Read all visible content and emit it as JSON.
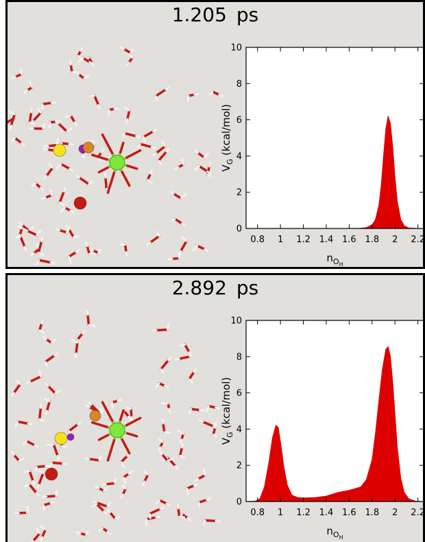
{
  "panels": [
    {
      "time_value": "1.205",
      "time_unit": "ps",
      "molecule_colors": {
        "oxygen": "#c41a14",
        "hydrogen": "#f2f2f2",
        "metal": "#7ee83a",
        "sulfur": "#f5e21c",
        "phosphorus": "#d8862a",
        "iodine": "#9b1fb8"
      }
    },
    {
      "time_value": "2.892",
      "time_unit": "ps",
      "molecule_colors": {
        "oxygen": "#c41a14",
        "hydrogen": "#f2f2f2",
        "metal": "#7ee83a",
        "sulfur": "#f5e21c",
        "phosphorus": "#d8862a",
        "iodine": "#9b1fb8"
      }
    }
  ],
  "chart_data": [
    {
      "type": "area",
      "ylabel_main": "V",
      "ylabel_sub": "G",
      "ylabel_rest": " (kcal/mol)",
      "xlabel_main": "n",
      "xlabel_sub": "O",
      "xlabel_subsub": "H",
      "xlim": [
        0.7,
        2.25
      ],
      "ylim": [
        0,
        10
      ],
      "x_ticks": [
        0.8,
        1,
        1.2,
        1.4,
        1.6,
        1.8,
        2,
        2.2
      ],
      "x_tick_labels": [
        "0.8",
        "1",
        "1.2",
        "1.4",
        "1.6",
        "1.8",
        "2",
        "2.2"
      ],
      "y_ticks": [
        0,
        2,
        4,
        6,
        8,
        10
      ],
      "y_tick_labels": [
        "0",
        "2",
        "4",
        "6",
        "8",
        "10"
      ],
      "fill_color": "#dd0000",
      "x": [
        0.7,
        1.6,
        1.7,
        1.75,
        1.8,
        1.83,
        1.86,
        1.88,
        1.9,
        1.92,
        1.94,
        1.96,
        1.98,
        2.0,
        2.02,
        2.05,
        2.08,
        2.12,
        2.2,
        2.25
      ],
      "y": [
        0,
        0,
        0.01,
        0.05,
        0.2,
        0.5,
        1.3,
        2.4,
        4.0,
        5.5,
        6.2,
        5.8,
        4.5,
        2.8,
        1.5,
        0.5,
        0.15,
        0.03,
        0,
        0
      ]
    },
    {
      "type": "area",
      "ylabel_main": "V",
      "ylabel_sub": "G",
      "ylabel_rest": " (kcal/mol)",
      "xlabel_main": "n",
      "xlabel_sub": "O",
      "xlabel_subsub": "H",
      "xlim": [
        0.7,
        2.25
      ],
      "ylim": [
        0,
        10
      ],
      "x_ticks": [
        0.8,
        1,
        1.2,
        1.4,
        1.6,
        1.8,
        2,
        2.2
      ],
      "x_tick_labels": [
        "0.8",
        "1",
        "1.2",
        "1.4",
        "1.6",
        "1.8",
        "2",
        "2.2"
      ],
      "y_ticks": [
        0,
        2,
        4,
        6,
        8,
        10
      ],
      "y_tick_labels": [
        "0",
        "2",
        "4",
        "6",
        "8",
        "10"
      ],
      "fill_color": "#dd0000",
      "x": [
        0.7,
        0.78,
        0.82,
        0.86,
        0.9,
        0.93,
        0.96,
        0.98,
        1.0,
        1.03,
        1.06,
        1.1,
        1.15,
        1.2,
        1.3,
        1.4,
        1.5,
        1.6,
        1.7,
        1.75,
        1.8,
        1.83,
        1.86,
        1.89,
        1.92,
        1.94,
        1.96,
        1.98,
        2.0,
        2.02,
        2.05,
        2.08,
        2.12,
        2.18,
        2.25
      ],
      "y": [
        0,
        0.02,
        0.15,
        0.8,
        2.2,
        3.5,
        4.2,
        4.1,
        3.3,
        1.9,
        0.9,
        0.35,
        0.22,
        0.2,
        0.22,
        0.3,
        0.5,
        0.62,
        0.8,
        1.2,
        2.3,
        3.8,
        5.6,
        7.3,
        8.4,
        8.55,
        8.0,
        6.6,
        4.8,
        3.0,
        1.3,
        0.5,
        0.15,
        0.02,
        0
      ]
    }
  ]
}
